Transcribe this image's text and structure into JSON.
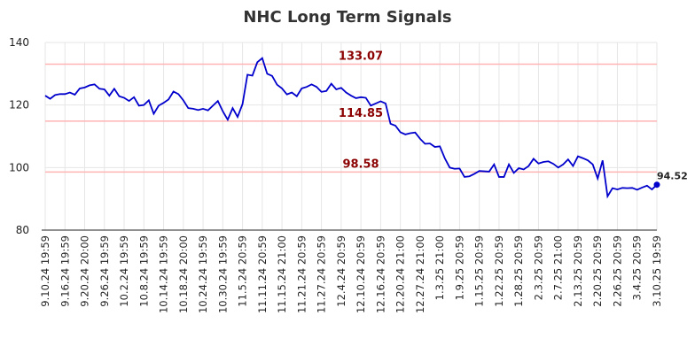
{
  "chart_data": {
    "type": "line",
    "title": "NHC Long Term Signals",
    "categories": [
      "9.10.24 19:59",
      null,
      null,
      null,
      "9.16.24 19:59",
      null,
      null,
      null,
      "9.20.24 20:00",
      null,
      null,
      null,
      "9.26.24 19:59",
      null,
      null,
      null,
      "10.2.24 19:59",
      null,
      null,
      null,
      "10.8.24 19:59",
      null,
      null,
      null,
      "10.14.24 19:59",
      null,
      null,
      null,
      "10.18.24 20:00",
      null,
      null,
      null,
      "10.24.24 19:59",
      null,
      null,
      null,
      "10.30.24 19:59",
      null,
      null,
      null,
      "11.5.24 20:59",
      null,
      null,
      null,
      "11.11.24 20:59",
      null,
      null,
      null,
      "11.15.24 21:00",
      null,
      null,
      null,
      "11.21.24 20:59",
      null,
      null,
      null,
      "11.27.24 20:59",
      null,
      null,
      null,
      "12.4.24 20:59",
      null,
      null,
      null,
      "12.10.24 20:59",
      null,
      null,
      null,
      "12.16.24 20:59",
      null,
      null,
      null,
      "12.20.24 21:00",
      null,
      null,
      null,
      "12.27.24 21:00",
      null,
      null,
      null,
      "1.3.25 21:00",
      null,
      null,
      null,
      "1.9.25 20:59",
      null,
      null,
      null,
      "1.15.25 20:59",
      null,
      null,
      null,
      "1.22.25 20:59",
      null,
      null,
      null,
      "1.28.25 20:59",
      null,
      null,
      null,
      "2.3.25 20:59",
      null,
      null,
      null,
      "2.7.25 21:00",
      null,
      null,
      null,
      "2.13.25 20:59",
      null,
      null,
      null,
      "2.20.25 20:59",
      null,
      null,
      null,
      "2.26.25 20:59",
      null,
      null,
      null,
      "3.4.25 20:59",
      null,
      null,
      null,
      "3.10.25 19:59"
    ],
    "series": [
      {
        "name": "NHC",
        "color": "#0000cc",
        "values": [
          123,
          122,
          123.2,
          123.5,
          123.5,
          124,
          123.3,
          125.3,
          125.6,
          126.3,
          126.6,
          125.2,
          125,
          123,
          125.2,
          122.8,
          122.3,
          121.3,
          122.5,
          119.8,
          120,
          121.5,
          117.2,
          119.8,
          120.7,
          121.8,
          124.3,
          123.5,
          121.5,
          119,
          118.8,
          118.4,
          118.8,
          118.3,
          119.8,
          121.3,
          118,
          115.3,
          119,
          116.2,
          120.3,
          129.7,
          129.4,
          133.7,
          135,
          130,
          129.3,
          126.5,
          125.3,
          123.4,
          124,
          122.8,
          125.3,
          125.8,
          126.6,
          125.8,
          124.2,
          124.5,
          126.8,
          125,
          125.5,
          124,
          123,
          122.2,
          122.5,
          122.3,
          119.8,
          120.5,
          121.2,
          120.5,
          114,
          113.4,
          111.3,
          110.6,
          111,
          111.2,
          109.2,
          107.6,
          107.7,
          106.6,
          106.8,
          103,
          100,
          99.6,
          99.7,
          97,
          97.2,
          98,
          98.9,
          98.8,
          98.7,
          101,
          97,
          97,
          101,
          98.3,
          99.8,
          99.4,
          100.5,
          102.8,
          101.3,
          101.8,
          102,
          101.2,
          100,
          101,
          102.6,
          100.5,
          103.6,
          103,
          102.3,
          101,
          96.5,
          102.3,
          90.8,
          93.4,
          93,
          93.5,
          93.4,
          93.5,
          92.9,
          93.6,
          94.2,
          93,
          94.52
        ]
      }
    ],
    "reference_lines": [
      {
        "value": 133.07,
        "color": "#ffb3b3",
        "label_color": "#8b0000"
      },
      {
        "value": 114.85,
        "color": "#ffb3b3",
        "label_color": "#8b0000"
      },
      {
        "value": 98.58,
        "color": "#ffb3b3",
        "label_color": "#8b0000"
      }
    ],
    "ylim": [
      80,
      140
    ],
    "yticks": [
      80,
      100,
      120,
      140
    ],
    "grid": true,
    "mark_last_point": true
  }
}
